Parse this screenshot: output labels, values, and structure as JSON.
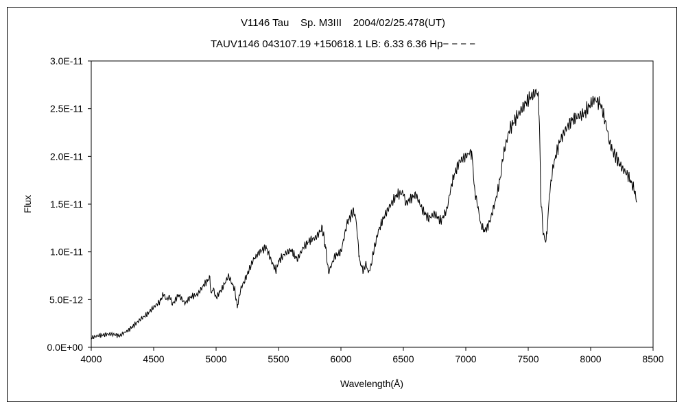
{
  "chart_data": {
    "type": "line",
    "title": "V1146 Tau    Sp. M3III    2004/02/25.478(UT)",
    "subtitle": "TAUV1146 043107.19 +150618.1 LB: 6.33 6.36 Hp− − − −",
    "xlabel": "Wavelength(Å)",
    "ylabel": "Flux",
    "xlim": [
      4000,
      8500
    ],
    "ylim": [
      0,
      3e-11
    ],
    "x_ticks": [
      4000,
      4500,
      5000,
      5500,
      6000,
      6500,
      7000,
      7500,
      8000,
      8500
    ],
    "x_tick_labels": [
      "4000",
      "4500",
      "5000",
      "5500",
      "6000",
      "6500",
      "7000",
      "7500",
      "8000",
      "8500"
    ],
    "y_ticks": [
      0,
      5e-12,
      1e-11,
      1.5e-11,
      2e-11,
      2.5e-11,
      3e-11
    ],
    "y_tick_labels": [
      "0.0E+00",
      "5.0E-12",
      "1.0E-11",
      "1.5E-11",
      "2.0E-11",
      "2.5E-11",
      "3.0E-11"
    ],
    "grid": false,
    "legend": "none",
    "line_color": "#000000",
    "series": [
      {
        "x": [
          4000,
          4050,
          4100,
          4150,
          4200,
          4230,
          4260,
          4300,
          4350,
          4400,
          4450,
          4500,
          4550,
          4580,
          4600,
          4630,
          4650,
          4700,
          4750,
          4800,
          4850,
          4900,
          4950,
          4960,
          4975,
          5000,
          5050,
          5100,
          5150,
          5170,
          5180,
          5200,
          5230,
          5260,
          5300,
          5350,
          5400,
          5450,
          5480,
          5500,
          5550,
          5600,
          5650,
          5700,
          5750,
          5800,
          5850,
          5870,
          5880,
          5900,
          5950,
          6000,
          6050,
          6080,
          6100,
          6120,
          6140,
          6150,
          6180,
          6200,
          6220,
          6240,
          6260,
          6300,
          6350,
          6400,
          6450,
          6500,
          6520,
          6550,
          6600,
          6650,
          6700,
          6750,
          6800,
          6850,
          6870,
          6900,
          6950,
          7000,
          7040,
          7050,
          7070,
          7100,
          7120,
          7150,
          7170,
          7200,
          7230,
          7250,
          7280,
          7300,
          7350,
          7400,
          7450,
          7500,
          7550,
          7570,
          7580,
          7590,
          7600,
          7620,
          7640,
          7650,
          7670,
          7700,
          7750,
          7800,
          7850,
          7900,
          7950,
          8000,
          8030,
          8050,
          8080,
          8100,
          8130,
          8150,
          8180,
          8200,
          8220,
          8250,
          8300,
          8350,
          8370
        ],
        "y": [
          1e-12,
          1.2e-12,
          1.3e-12,
          1.4e-12,
          1.3e-12,
          1.2e-12,
          1.5e-12,
          1.8e-12,
          2.4e-12,
          3e-12,
          3.5e-12,
          4.2e-12,
          4.8e-12,
          5.6e-12,
          5e-12,
          5.3e-12,
          4.5e-12,
          5.5e-12,
          4.6e-12,
          5.3e-12,
          5.5e-12,
          6.5e-12,
          7.3e-12,
          5.5e-12,
          6.2e-12,
          5.2e-12,
          6.2e-12,
          7.5e-12,
          6e-12,
          4.2e-12,
          5e-12,
          6.2e-12,
          7e-12,
          8e-12,
          9.2e-12,
          1e-11,
          1.05e-11,
          8.8e-12,
          8e-12,
          9e-12,
          9.8e-12,
          1.02e-11,
          9.2e-12,
          1.05e-11,
          1.12e-11,
          1.15e-11,
          1.25e-11,
          1.1e-11,
          1.02e-11,
          7.8e-12,
          9.5e-12,
          1e-11,
          1.3e-11,
          1.38e-11,
          1.43e-11,
          1.35e-11,
          1.05e-11,
          9e-12,
          8e-12,
          8.8e-12,
          7.8e-12,
          8.5e-12,
          1e-11,
          1.22e-11,
          1.38e-11,
          1.5e-11,
          1.6e-11,
          1.62e-11,
          1.5e-11,
          1.55e-11,
          1.6e-11,
          1.45e-11,
          1.35e-11,
          1.4e-11,
          1.32e-11,
          1.45e-11,
          1.6e-11,
          1.78e-11,
          1.95e-11,
          2e-11,
          2.05e-11,
          2.02e-11,
          1.65e-11,
          1.45e-11,
          1.28e-11,
          1.22e-11,
          1.25e-11,
          1.35e-11,
          1.5e-11,
          1.6e-11,
          1.8e-11,
          2.02e-11,
          2.28e-11,
          2.4e-11,
          2.5e-11,
          2.6e-11,
          2.66e-11,
          2.68e-11,
          2.6e-11,
          2.35e-11,
          1.6e-11,
          1.2e-11,
          1.1e-11,
          1.2e-11,
          1.6e-11,
          1.9e-11,
          2.15e-11,
          2.28e-11,
          2.38e-11,
          2.42e-11,
          2.45e-11,
          2.55e-11,
          2.6e-11,
          2.58e-11,
          2.55e-11,
          2.45e-11,
          2.3e-11,
          2.15e-11,
          2.05e-11,
          2e-11,
          1.95e-11,
          1.88e-11,
          1.8e-11,
          1.65e-11,
          1.52e-11
        ]
      }
    ]
  }
}
